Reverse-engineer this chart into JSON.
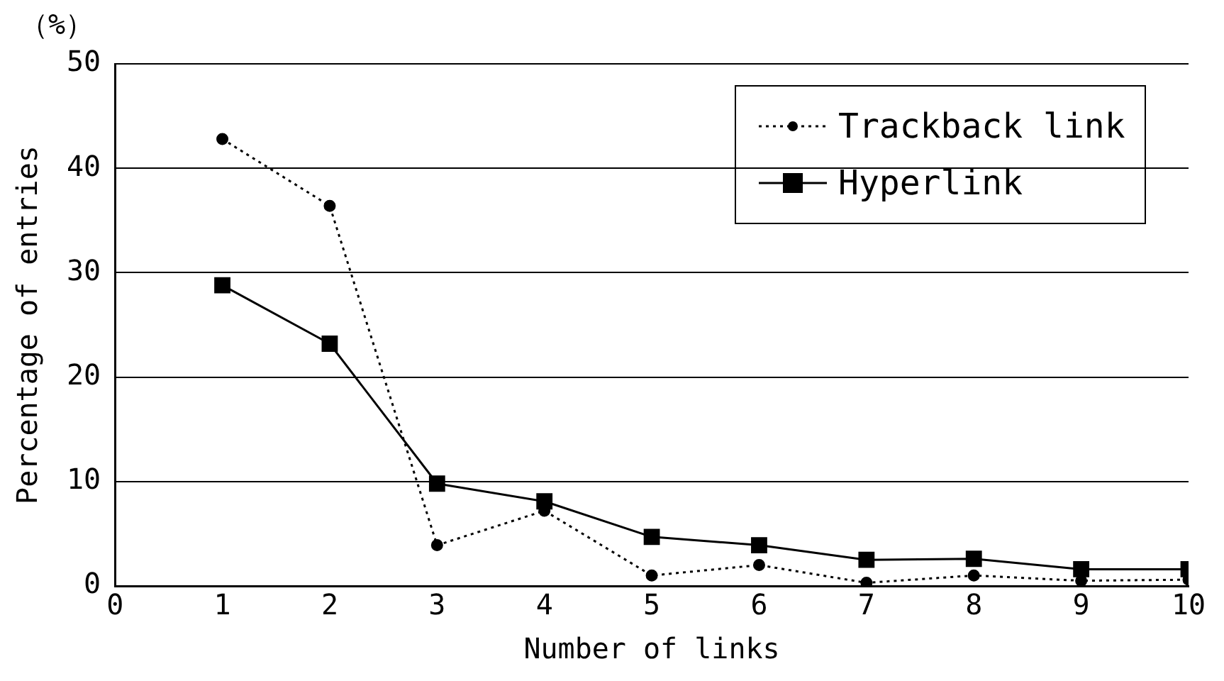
{
  "chart_data": {
    "type": "line",
    "xlabel": "Number of links",
    "ylabel": "Percentage of entries",
    "annotations": [
      "（%）"
    ],
    "x": [
      1,
      2,
      3,
      4,
      5,
      6,
      7,
      8,
      9,
      10
    ],
    "xlim": [
      0,
      10
    ],
    "xticks": [
      0,
      1,
      2,
      3,
      4,
      5,
      6,
      7,
      8,
      9,
      10
    ],
    "ylim": [
      0,
      50
    ],
    "yticks": [
      0,
      10,
      20,
      30,
      40,
      50
    ],
    "grid": "y",
    "legend": "top right",
    "series": [
      {
        "name": "Trackback link",
        "color": "#000000",
        "marker": "circle",
        "line_style": "dotted",
        "values": [
          42.8,
          36.4,
          3.9,
          7.2,
          1.0,
          2.0,
          0.3,
          1.0,
          0.5,
          0.6
        ]
      },
      {
        "name": "Hyperlink",
        "color": "#000000",
        "marker": "square",
        "line_style": "solid",
        "values": [
          28.8,
          23.2,
          9.8,
          8.1,
          4.7,
          3.9,
          2.5,
          2.6,
          1.6,
          1.6
        ]
      }
    ]
  }
}
